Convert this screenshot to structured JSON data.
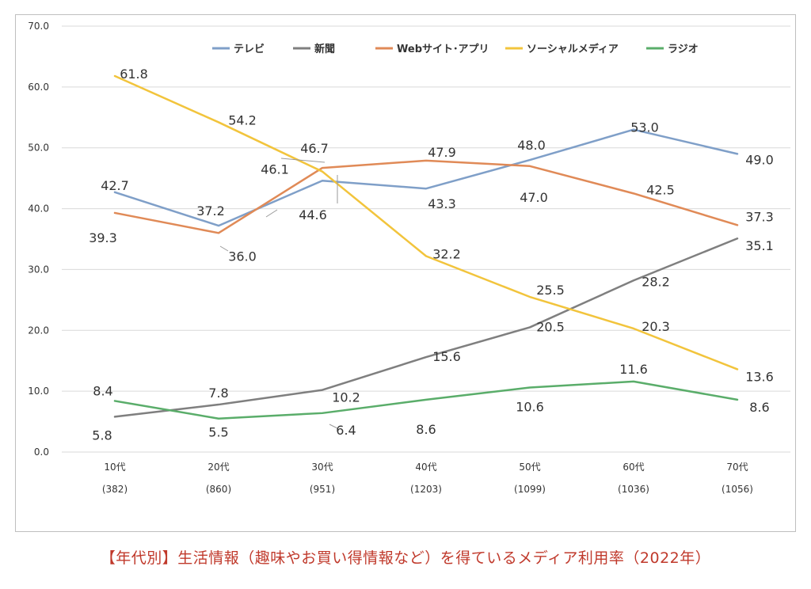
{
  "caption": "【年代別】生活情報（趣味やお買い得情報など）を得ているメディア利用率（2022年）",
  "chart_data": {
    "type": "line",
    "title": "",
    "xlabel": "",
    "ylabel": "",
    "categories": [
      "10代",
      "20代",
      "30代",
      "40代",
      "50代",
      "60代",
      "70代"
    ],
    "sample_sizes": [
      "(382)",
      "(860)",
      "(951)",
      "(1203)",
      "(1099)",
      "(1036)",
      "(1056)"
    ],
    "ylim": [
      0,
      70
    ],
    "yticks": [
      "0.0",
      "10.0",
      "20.0",
      "30.0",
      "40.0",
      "50.0",
      "60.0",
      "70.0"
    ],
    "grid": "horizontal",
    "legend_position": "top",
    "series": [
      {
        "name": "テレビ",
        "color": "#7f9fc8",
        "values": [
          42.7,
          37.2,
          44.6,
          43.3,
          48.0,
          53.0,
          49.0
        ],
        "labels": [
          "42.7",
          "37.2",
          "44.6",
          "43.3",
          "48.0",
          "53.0",
          "49.0"
        ]
      },
      {
        "name": "新聞",
        "color": "#7f7f7f",
        "values": [
          5.8,
          7.8,
          10.2,
          15.6,
          20.5,
          28.2,
          35.1
        ],
        "labels": [
          "5.8",
          "7.8",
          "10.2",
          "15.6",
          "20.5",
          "28.2",
          "35.1"
        ]
      },
      {
        "name": "Webサイト･アプリ",
        "color": "#e08a57",
        "values": [
          39.3,
          36.0,
          46.7,
          47.9,
          47.0,
          42.5,
          37.3
        ],
        "labels": [
          "39.3",
          "36.0",
          "46.7",
          "47.9",
          "47.0",
          "42.5",
          "37.3"
        ]
      },
      {
        "name": "ソーシャルメディア",
        "color": "#f2c43c",
        "values": [
          61.8,
          54.2,
          46.1,
          32.2,
          25.5,
          20.3,
          13.6
        ],
        "labels": [
          "61.8",
          "54.2",
          "46.1",
          "32.2",
          "25.5",
          "20.3",
          "13.6"
        ]
      },
      {
        "name": "ラジオ",
        "color": "#5aad6a",
        "values": [
          8.4,
          5.5,
          6.4,
          8.6,
          10.6,
          11.6,
          8.6
        ],
        "labels": [
          "8.4",
          "5.5",
          "6.4",
          "8.6",
          "10.6",
          "11.6",
          "8.6"
        ]
      }
    ]
  }
}
